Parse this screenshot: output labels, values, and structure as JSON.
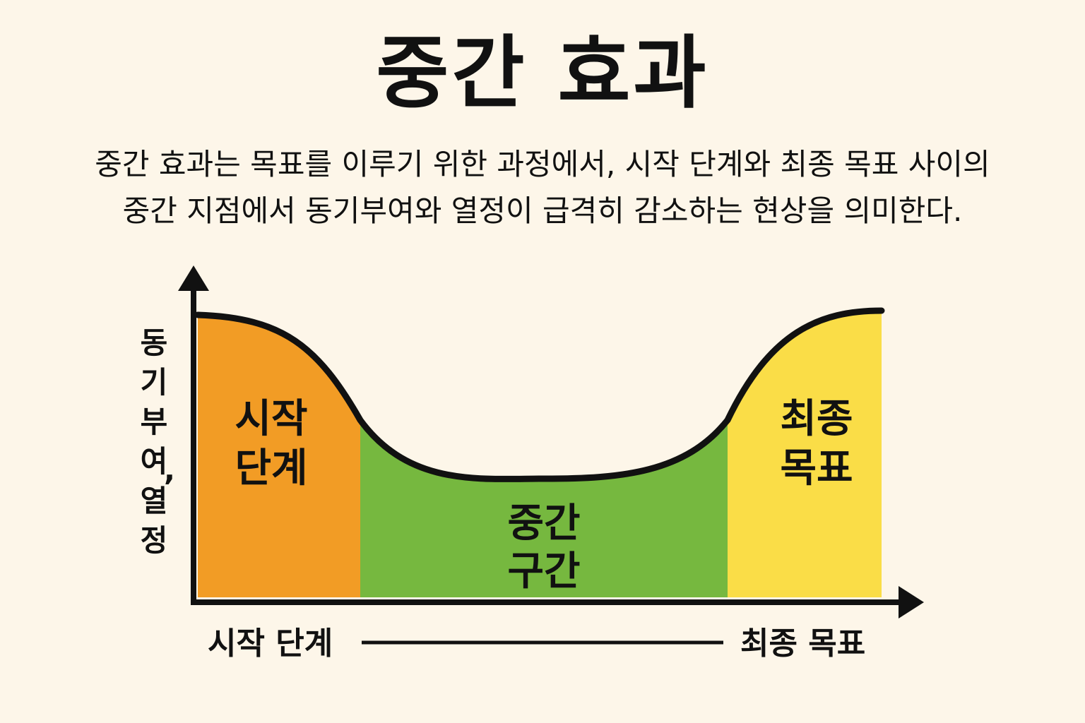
{
  "title": "중간 효과",
  "description": "중간 효과는 목표를 이루기 위한 과정에서, 시작 단계와 최종 목표 사이의 중간 지점에서 동기부여와 열정이 급격히 감소하는 현상을 의미한다.",
  "y_axis_label": "동기부여, 열정",
  "zones": {
    "start": {
      "line1": "시작",
      "line2": "단계",
      "color": "#f29c25"
    },
    "middle": {
      "line1": "중간",
      "line2": "구간",
      "color": "#76b83f"
    },
    "final": {
      "line1": "최종",
      "line2": "목표",
      "color": "#fadd47"
    }
  },
  "x_axis": {
    "left_label": "시작 단계",
    "right_label": "최종 목표"
  }
}
